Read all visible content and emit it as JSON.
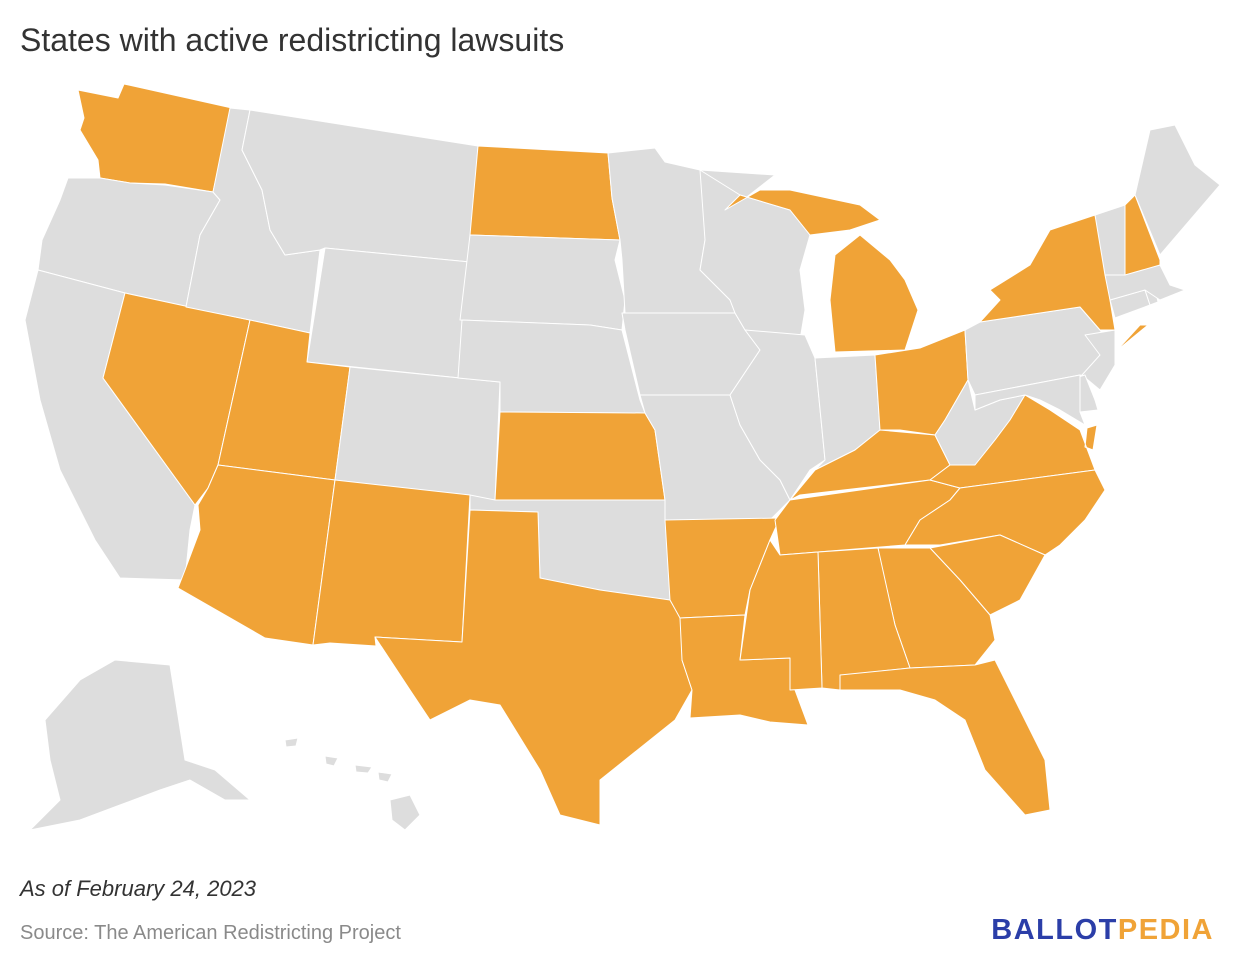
{
  "title": "States with active redistricting lawsuits",
  "note": "As of February 24, 2023",
  "source": "Source: The American Redistricting Project",
  "logo": {
    "part1": "BALLOT",
    "part2": "PEDIA"
  },
  "colors": {
    "active": "#f0a337",
    "inactive": "#dddddd",
    "text": "#333333",
    "logo_blue": "#2b3ea8",
    "logo_orange": "#f0a337"
  },
  "map_data": {
    "active_states": [
      "WA",
      "ND",
      "NV",
      "UT",
      "AZ",
      "NM",
      "KS",
      "TX",
      "AR",
      "LA",
      "MS",
      "AL",
      "GA",
      "FL",
      "SC",
      "NC",
      "TN",
      "KY",
      "VA",
      "OH",
      "MI",
      "NY",
      "NH"
    ],
    "inactive_states": [
      "OR",
      "CA",
      "ID",
      "MT",
      "WY",
      "SD",
      "NE",
      "CO",
      "OK",
      "MN",
      "IA",
      "MO",
      "WI",
      "IL",
      "IN",
      "WV",
      "PA",
      "NJ",
      "DE",
      "MD",
      "CT",
      "RI",
      "MA",
      "VT",
      "ME",
      "AK",
      "HI"
    ]
  }
}
